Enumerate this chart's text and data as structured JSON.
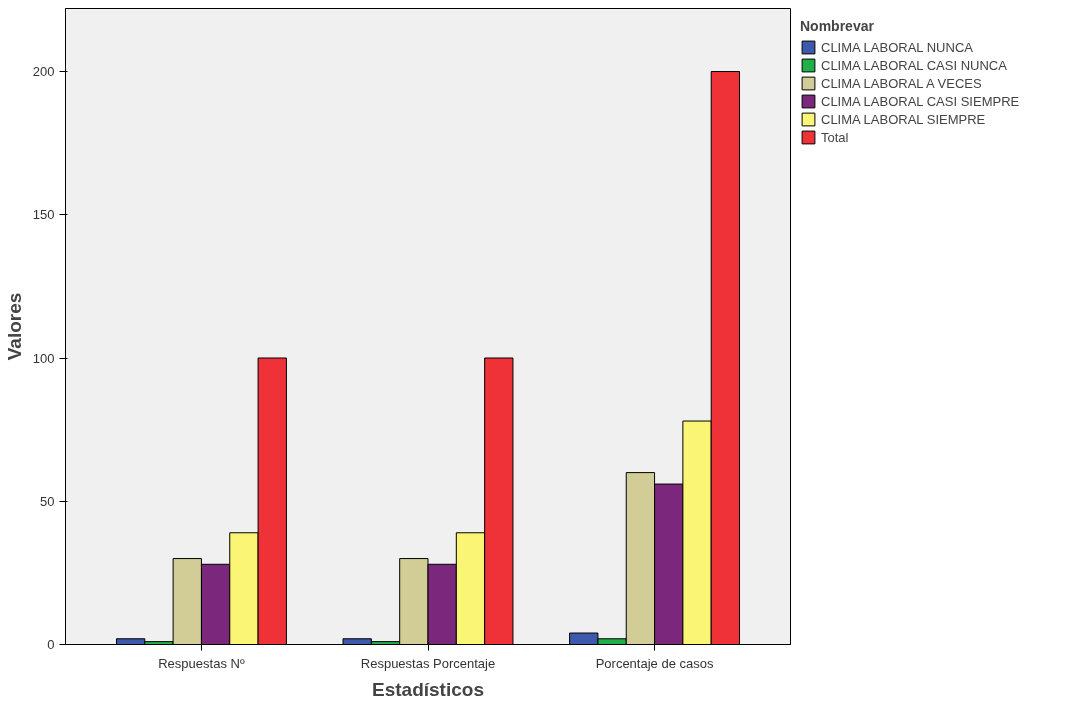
{
  "chart_data": {
    "type": "bar",
    "xlabel": "Estadísticos",
    "ylabel": "Valores",
    "legend_title": "Nombrevar",
    "categories": [
      "Respuestas Nº",
      "Respuestas Porcentaje",
      "Porcentaje de casos"
    ],
    "series": [
      {
        "name": "CLIMA LABORAL NUNCA",
        "color": "#3e58ac",
        "values": [
          2,
          2,
          4
        ]
      },
      {
        "name": "CLIMA LABORAL CASI NUNCA",
        "color": "#20b04a",
        "values": [
          1,
          1,
          2
        ]
      },
      {
        "name": "CLIMA LABORAL A VECES",
        "color": "#d2cc96",
        "values": [
          30,
          30,
          60
        ]
      },
      {
        "name": "CLIMA LABORAL CASI SIEMPRE",
        "color": "#7b287c",
        "values": [
          28,
          28,
          56
        ]
      },
      {
        "name": "CLIMA LABORAL SIEMPRE",
        "color": "#faf575",
        "values": [
          39,
          39,
          78
        ]
      },
      {
        "name": "Total",
        "color": "#ee3237",
        "values": [
          100,
          100,
          200
        ]
      }
    ],
    "ylim": [
      0,
      222
    ],
    "yticks": [
      0,
      50,
      100,
      150,
      200
    ],
    "grid": false,
    "legend": "top right"
  }
}
